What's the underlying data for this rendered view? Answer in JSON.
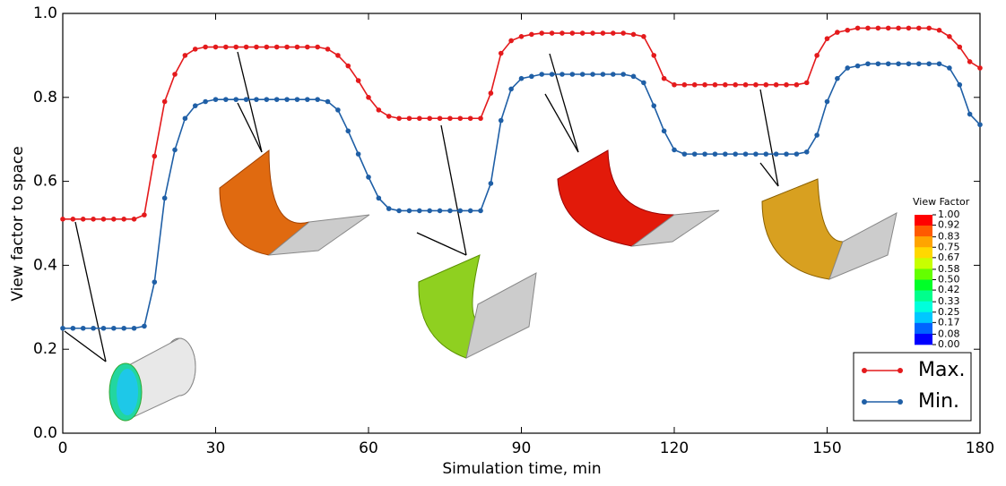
{
  "chart_data": {
    "type": "line",
    "xlabel": "Simulation time, min",
    "ylabel": "View factor to space",
    "x": [
      0,
      2,
      4,
      6,
      8,
      10,
      12,
      14,
      16,
      18,
      20,
      22,
      24,
      26,
      28,
      30,
      32,
      34,
      36,
      38,
      40,
      42,
      44,
      46,
      48,
      50,
      52,
      54,
      56,
      58,
      60,
      62,
      64,
      66,
      68,
      70,
      72,
      74,
      76,
      78,
      80,
      82,
      84,
      86,
      88,
      90,
      92,
      94,
      96,
      98,
      100,
      102,
      104,
      106,
      108,
      110,
      112,
      114,
      116,
      118,
      120,
      122,
      124,
      126,
      128,
      130,
      132,
      134,
      136,
      138,
      140,
      142,
      144,
      146,
      148,
      150,
      152,
      154,
      156,
      158,
      160,
      162,
      164,
      166,
      168,
      170,
      172,
      174,
      176,
      178,
      180
    ],
    "series": [
      {
        "name": "Max.",
        "color": "#e41a1c",
        "values": [
          0.51,
          0.51,
          0.51,
          0.51,
          0.51,
          0.51,
          0.51,
          0.51,
          0.52,
          0.66,
          0.79,
          0.855,
          0.9,
          0.915,
          0.92,
          0.92,
          0.92,
          0.92,
          0.92,
          0.92,
          0.92,
          0.92,
          0.92,
          0.92,
          0.92,
          0.92,
          0.915,
          0.9,
          0.875,
          0.84,
          0.8,
          0.77,
          0.755,
          0.75,
          0.75,
          0.75,
          0.75,
          0.75,
          0.75,
          0.75,
          0.75,
          0.75,
          0.81,
          0.905,
          0.935,
          0.945,
          0.95,
          0.953,
          0.953,
          0.953,
          0.953,
          0.953,
          0.953,
          0.953,
          0.953,
          0.953,
          0.95,
          0.945,
          0.9,
          0.845,
          0.83,
          0.83,
          0.83,
          0.83,
          0.83,
          0.83,
          0.83,
          0.83,
          0.83,
          0.83,
          0.83,
          0.83,
          0.83,
          0.835,
          0.9,
          0.94,
          0.955,
          0.96,
          0.965,
          0.965,
          0.965,
          0.965,
          0.965,
          0.965,
          0.965,
          0.965,
          0.96,
          0.945,
          0.92,
          0.885,
          0.87
        ]
      },
      {
        "name": "Min.",
        "color": "#1f5fa6",
        "values": [
          0.25,
          0.25,
          0.25,
          0.25,
          0.25,
          0.25,
          0.25,
          0.25,
          0.255,
          0.36,
          0.56,
          0.675,
          0.75,
          0.78,
          0.79,
          0.795,
          0.795,
          0.795,
          0.795,
          0.795,
          0.795,
          0.795,
          0.795,
          0.795,
          0.795,
          0.795,
          0.79,
          0.77,
          0.72,
          0.665,
          0.61,
          0.56,
          0.535,
          0.53,
          0.53,
          0.53,
          0.53,
          0.53,
          0.53,
          0.53,
          0.53,
          0.53,
          0.595,
          0.745,
          0.82,
          0.845,
          0.85,
          0.855,
          0.855,
          0.855,
          0.855,
          0.855,
          0.855,
          0.855,
          0.855,
          0.855,
          0.85,
          0.835,
          0.78,
          0.72,
          0.675,
          0.665,
          0.665,
          0.665,
          0.665,
          0.665,
          0.665,
          0.665,
          0.665,
          0.665,
          0.665,
          0.665,
          0.665,
          0.67,
          0.71,
          0.79,
          0.845,
          0.87,
          0.875,
          0.88,
          0.88,
          0.88,
          0.88,
          0.88,
          0.88,
          0.88,
          0.88,
          0.87,
          0.83,
          0.76,
          0.735
        ]
      }
    ],
    "xlim": [
      0,
      180
    ],
    "xticks": [
      0,
      30,
      60,
      90,
      120,
      150,
      180
    ],
    "ylim": [
      0,
      1
    ],
    "yticks": [
      {
        "value": 0,
        "label": "0.0"
      },
      0.2,
      0.4,
      0.6,
      0.8,
      {
        "value": 1,
        "label": "1.0"
      }
    ],
    "grid": false,
    "legend": "lower right",
    "colorbar": {
      "title": "View Factor",
      "ticks": [
        {
          "value": 1,
          "label": "1.00"
        },
        {
          "value": 0.92,
          "label": "0.92"
        },
        {
          "value": 0.83,
          "label": "0.83"
        },
        {
          "value": 0.75,
          "label": "0.75"
        },
        {
          "value": 0.67,
          "label": "0.67"
        },
        {
          "value": 0.58,
          "label": "0.58"
        },
        {
          "value": 0.5,
          "label": "0.50"
        },
        {
          "value": 0.42,
          "label": "0.42"
        },
        {
          "value": 0.33,
          "label": "0.33"
        },
        {
          "value": 0.25,
          "label": "0.25"
        },
        {
          "value": 0.17,
          "label": "0.17"
        },
        {
          "value": 0.08,
          "label": "0.08"
        },
        {
          "value": 0,
          "label": "0.00"
        }
      ],
      "colors": [
        "#ff0000",
        "#ff5a00",
        "#ffa400",
        "#ffd800",
        "#c8ff00",
        "#64ff00",
        "#00ff28",
        "#00ff8c",
        "#00ffdc",
        "#00c8ff",
        "#0064ff",
        "#0000ff"
      ]
    }
  }
}
